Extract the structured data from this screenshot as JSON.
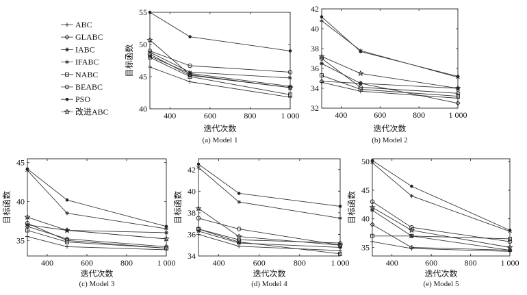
{
  "legend": [
    {
      "name": "ABC",
      "marker": "plus"
    },
    {
      "name": "GLABC",
      "marker": "diamond"
    },
    {
      "name": "IABC",
      "marker": "star"
    },
    {
      "name": "IFABC",
      "marker": "asterisk"
    },
    {
      "name": "NABC",
      "marker": "square"
    },
    {
      "name": "BEABC",
      "marker": "circle"
    },
    {
      "name": "PSO",
      "marker": "dot"
    },
    {
      "name": "改进ABC",
      "marker": "pentagram"
    }
  ],
  "chart_data": [
    {
      "type": "line",
      "caption": "(a) Model 1",
      "xlabel": "迭代次数",
      "ylabel": "目标函数",
      "xlim": [
        300,
        1000
      ],
      "ylim": [
        40,
        55
      ],
      "xticks": [
        400,
        600,
        800,
        1000
      ],
      "xtick_labels": [
        "400",
        "600",
        "800",
        "1 000"
      ],
      "yticks": [
        40,
        45,
        50,
        55
      ],
      "ytick_labels": [
        "40",
        "45",
        "50",
        "55"
      ],
      "x": [
        300,
        500,
        1000
      ],
      "series": [
        {
          "name": "ABC",
          "values": [
            46.5,
            44.2,
            41.8
          ]
        },
        {
          "name": "GLABC",
          "values": [
            48.5,
            45.2,
            43.3
          ]
        },
        {
          "name": "IABC",
          "values": [
            48.2,
            45.5,
            43.5
          ]
        },
        {
          "name": "IFABC",
          "values": [
            48.8,
            45.7,
            44.8
          ]
        },
        {
          "name": "NABC",
          "values": [
            48.0,
            45.0,
            42.2
          ]
        },
        {
          "name": "BEABC",
          "values": [
            49.0,
            46.7,
            45.7
          ]
        },
        {
          "name": "PSO",
          "values": [
            55.0,
            51.2,
            49.0
          ]
        },
        {
          "name": "改进ABC",
          "values": [
            50.7,
            45.3,
            43.3
          ]
        }
      ]
    },
    {
      "type": "line",
      "caption": "(b) Model 2",
      "xlabel": "迭代次数",
      "ylabel": "",
      "xlim": [
        300,
        1000
      ],
      "ylim": [
        32,
        42
      ],
      "xticks": [
        400,
        600,
        800,
        1000
      ],
      "xtick_labels": [
        "400",
        "600",
        "800",
        "1 000"
      ],
      "yticks": [
        32,
        34,
        36,
        38,
        40,
        42
      ],
      "ytick_labels": [
        "32",
        "34",
        "36",
        "38",
        "40",
        "42"
      ],
      "x": [
        300,
        500,
        1000
      ],
      "series": [
        {
          "name": "ABC",
          "values": [
            34.6,
            33.7,
            33.0
          ]
        },
        {
          "name": "GLABC",
          "values": [
            34.7,
            34.5,
            32.5
          ]
        },
        {
          "name": "IABC",
          "values": [
            36.5,
            34.5,
            34.0
          ]
        },
        {
          "name": "IFABC",
          "values": [
            40.8,
            37.8,
            35.1
          ]
        },
        {
          "name": "NABC",
          "values": [
            35.3,
            33.9,
            33.2
          ]
        },
        {
          "name": "BEABC",
          "values": [
            37.0,
            34.1,
            33.5
          ]
        },
        {
          "name": "PSO",
          "values": [
            41.2,
            37.7,
            35.2
          ]
        },
        {
          "name": "改进ABC",
          "values": [
            37.2,
            35.5,
            34.0
          ]
        }
      ]
    },
    {
      "type": "line",
      "caption": "(c) Model 3",
      "xlabel": "迭代次数",
      "ylabel": "目标函数",
      "xlim": [
        300,
        1000
      ],
      "ylim": [
        33,
        45.5
      ],
      "xticks": [
        400,
        600,
        800,
        1000
      ],
      "xtick_labels": [
        "400",
        "600",
        "800",
        "1 000"
      ],
      "yticks": [
        35,
        40,
        45
      ],
      "ytick_labels": [
        "35",
        "40",
        "45"
      ],
      "x": [
        300,
        500,
        1000
      ],
      "series": [
        {
          "name": "ABC",
          "values": [
            35.5,
            34.2,
            33.8
          ]
        },
        {
          "name": "GLABC",
          "values": [
            36.8,
            35.2,
            34.2
          ]
        },
        {
          "name": "IABC",
          "values": [
            37.0,
            36.3,
            36.0
          ]
        },
        {
          "name": "IFABC",
          "values": [
            44.0,
            38.5,
            36.5
          ]
        },
        {
          "name": "NABC",
          "values": [
            36.3,
            34.8,
            34.0
          ]
        },
        {
          "name": "BEABC",
          "values": [
            37.2,
            35.0,
            34.0
          ]
        },
        {
          "name": "PSO",
          "values": [
            44.2,
            40.2,
            36.8
          ]
        },
        {
          "name": "改进ABC",
          "values": [
            38.0,
            36.3,
            35.2
          ]
        }
      ]
    },
    {
      "type": "line",
      "caption": "(d) Model 4",
      "xlabel": "迭代次数",
      "ylabel": "目标函数",
      "xlim": [
        300,
        1000
      ],
      "ylim": [
        34,
        43
      ],
      "xticks": [
        400,
        600,
        800,
        1000
      ],
      "xtick_labels": [
        "400",
        "600",
        "800",
        "1 000"
      ],
      "yticks": [
        34,
        36,
        38,
        40,
        42
      ],
      "ytick_labels": [
        "34",
        "36",
        "38",
        "40",
        "42"
      ],
      "x": [
        300,
        500,
        1000
      ],
      "series": [
        {
          "name": "ABC",
          "values": [
            36.0,
            34.9,
            34.5
          ]
        },
        {
          "name": "GLABC",
          "values": [
            36.5,
            35.5,
            35.2
          ]
        },
        {
          "name": "IABC",
          "values": [
            36.3,
            35.2,
            34.8
          ]
        },
        {
          "name": "IFABC",
          "values": [
            42.2,
            39.0,
            37.5
          ]
        },
        {
          "name": "NABC",
          "values": [
            36.5,
            35.3,
            34.2
          ]
        },
        {
          "name": "BEABC",
          "values": [
            37.5,
            36.5,
            35.0
          ]
        },
        {
          "name": "PSO",
          "values": [
            42.5,
            39.8,
            38.6
          ]
        },
        {
          "name": "改进ABC",
          "values": [
            38.4,
            35.8,
            35.0
          ]
        }
      ]
    },
    {
      "type": "line",
      "caption": "(e) Model 5",
      "xlabel": "迭代次数",
      "ylabel": "目标函数",
      "xlim": [
        300,
        1000
      ],
      "ylim": [
        33.5,
        50.5
      ],
      "xticks": [
        400,
        600,
        800,
        1000
      ],
      "xtick_labels": [
        "400",
        "600",
        "800",
        "1 000"
      ],
      "yticks": [
        35,
        40,
        45,
        50
      ],
      "ytick_labels": [
        "35",
        "40",
        "45",
        "50"
      ],
      "x": [
        300,
        500,
        1000
      ],
      "series": [
        {
          "name": "ABC",
          "values": [
            36.0,
            34.8,
            34.3
          ]
        },
        {
          "name": "GLABC",
          "values": [
            39.0,
            35.0,
            34.5
          ]
        },
        {
          "name": "IABC",
          "values": [
            41.5,
            37.0,
            34.5
          ]
        },
        {
          "name": "IFABC",
          "values": [
            49.8,
            44.0,
            37.8
          ]
        },
        {
          "name": "NABC",
          "values": [
            37.0,
            37.0,
            36.5
          ]
        },
        {
          "name": "BEABC",
          "values": [
            43.0,
            38.5,
            36.0
          ]
        },
        {
          "name": "PSO",
          "values": [
            50.2,
            45.7,
            38.0
          ]
        },
        {
          "name": "改进ABC",
          "values": [
            42.0,
            38.0,
            35.0
          ]
        }
      ]
    }
  ]
}
